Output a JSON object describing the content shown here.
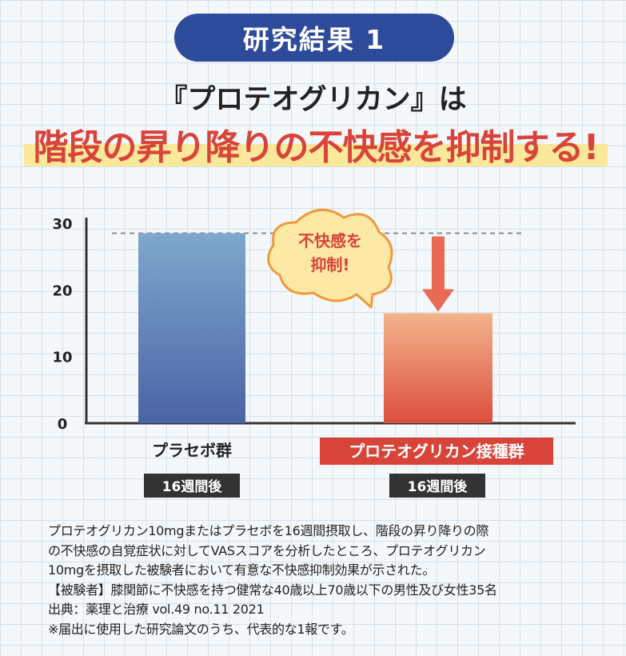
{
  "badge": "研究結果 1",
  "subtitle": "『プロテオグリカン』は",
  "headline": "階段の昇り降りの不快感を抑制する!",
  "chart_data": {
    "type": "bar",
    "categories": [
      "プラセボ群",
      "プロテオグリカン接種群"
    ],
    "values": [
      28.5,
      16.5
    ],
    "period_labels": [
      "16週間後",
      "16週間後"
    ],
    "ylim": [
      0,
      30
    ],
    "yticks": [
      0,
      10,
      20,
      30
    ],
    "callout": "不快感を 抑制!",
    "colors": {
      "placebo_top": "#7fa8cc",
      "placebo_bottom": "#4a63a6",
      "treat_top": "#f3b48c",
      "treat_bottom": "#dc4e3e",
      "accent": "#e96b55",
      "callout_bg": "#fde9a6",
      "callout_border": "#f09a3c"
    }
  },
  "caption": [
    "プロテオグリカン10mgまたはプラセボを16週間摂取し、階段の昇り降りの際",
    "の不快感の自覚症状に対してVASスコアを分析したところ、プロテオグリカン",
    "10mgを摂取した被験者において有意な不快感抑制効果が示された。",
    "【被験者】膝関節に不快感を持つ健常な40歳以上70歳以下の男性及び女性35名",
    "出典：薬理と治療 vol.49 no.11 2021",
    "※届出に使用した研究論文のうち、代表的な1報です。"
  ]
}
